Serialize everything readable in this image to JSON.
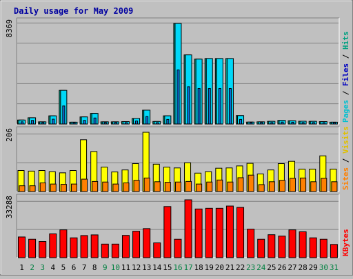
{
  "chart_data": [
    {
      "type": "bar",
      "title": "Daily usage for May 2009",
      "categories": [
        "1",
        "2",
        "3",
        "4",
        "5",
        "6",
        "7",
        "8",
        "9",
        "10",
        "11",
        "12",
        "13",
        "14",
        "15",
        "16",
        "17",
        "18",
        "19",
        "20",
        "21",
        "22",
        "23",
        "24",
        "25",
        "26",
        "27",
        "28",
        "29",
        "30",
        "31"
      ],
      "weekend_days": [
        "2",
        "3",
        "9",
        "10",
        "16",
        "17",
        "23",
        "24",
        "30",
        "31"
      ],
      "panel": "top",
      "ymax_label": "8369",
      "ylim": [
        0,
        8369
      ],
      "grid": true,
      "legend_right": [
        "Pages",
        "Files",
        "Hits"
      ],
      "series": [
        {
          "name": "Hits",
          "color": "#009f86",
          "values": [
            330,
            520,
            180,
            680,
            2800,
            150,
            590,
            880,
            180,
            180,
            200,
            460,
            1150,
            210,
            680,
            8369,
            5750,
            5400,
            5450,
            5450,
            5450,
            700,
            160,
            180,
            220,
            300,
            270,
            230,
            220,
            200,
            150
          ]
        },
        {
          "name": "Files",
          "color": "#00d8f8",
          "values": [
            330,
            520,
            180,
            680,
            2800,
            150,
            590,
            880,
            180,
            180,
            200,
            460,
            1150,
            210,
            680,
            8369,
            5750,
            5400,
            5450,
            5450,
            5450,
            700,
            160,
            180,
            220,
            300,
            270,
            230,
            220,
            200,
            150
          ]
        },
        {
          "name": "Pages",
          "color": "#1070e0",
          "values": [
            180,
            300,
            100,
            400,
            1500,
            80,
            300,
            500,
            100,
            100,
            110,
            250,
            620,
            110,
            380,
            4500,
            3100,
            2950,
            2950,
            2950,
            2950,
            380,
            90,
            100,
            120,
            160,
            150,
            120,
            120,
            110,
            80
          ]
        }
      ]
    },
    {
      "type": "bar",
      "panel": "middle",
      "ymax_label": "206",
      "ylim": [
        0,
        206
      ],
      "grid": true,
      "legend_right": [
        "Sites",
        "Visits"
      ],
      "series": [
        {
          "name": "Visits",
          "color": "#ffff00",
          "values": [
            73,
            71,
            73,
            69,
            65,
            73,
            180,
            139,
            85,
            68,
            75,
            97,
            206,
            95,
            85,
            82,
            100,
            64,
            69,
            81,
            82,
            89,
            98,
            61,
            75,
            97,
            105,
            78,
            78,
            124,
            78
          ]
        },
        {
          "name": "Sites",
          "color": "#ff8000",
          "values": [
            20,
            20,
            30,
            26,
            25,
            26,
            43,
            35,
            33,
            26,
            30,
            39,
            47,
            34,
            32,
            33,
            35,
            26,
            33,
            40,
            33,
            48,
            57,
            24,
            34,
            39,
            46,
            47,
            34,
            46,
            34
          ]
        }
      ]
    },
    {
      "type": "bar",
      "panel": "bottom",
      "ymax_label": "33288",
      "ylim": [
        0,
        33288
      ],
      "grid": true,
      "legend_right": [
        "KBytes"
      ],
      "series": [
        {
          "name": "KBytes",
          "color": "#ff0000",
          "values": [
            11900,
            10600,
            9300,
            13700,
            16000,
            11400,
            12700,
            13100,
            7800,
            7800,
            12800,
            15200,
            16700,
            8500,
            29400,
            10600,
            33288,
            28000,
            28400,
            28400,
            29700,
            28900,
            16400,
            10600,
            13200,
            12400,
            16000,
            14900,
            11400,
            10600,
            7600
          ]
        }
      ]
    }
  ]
}
